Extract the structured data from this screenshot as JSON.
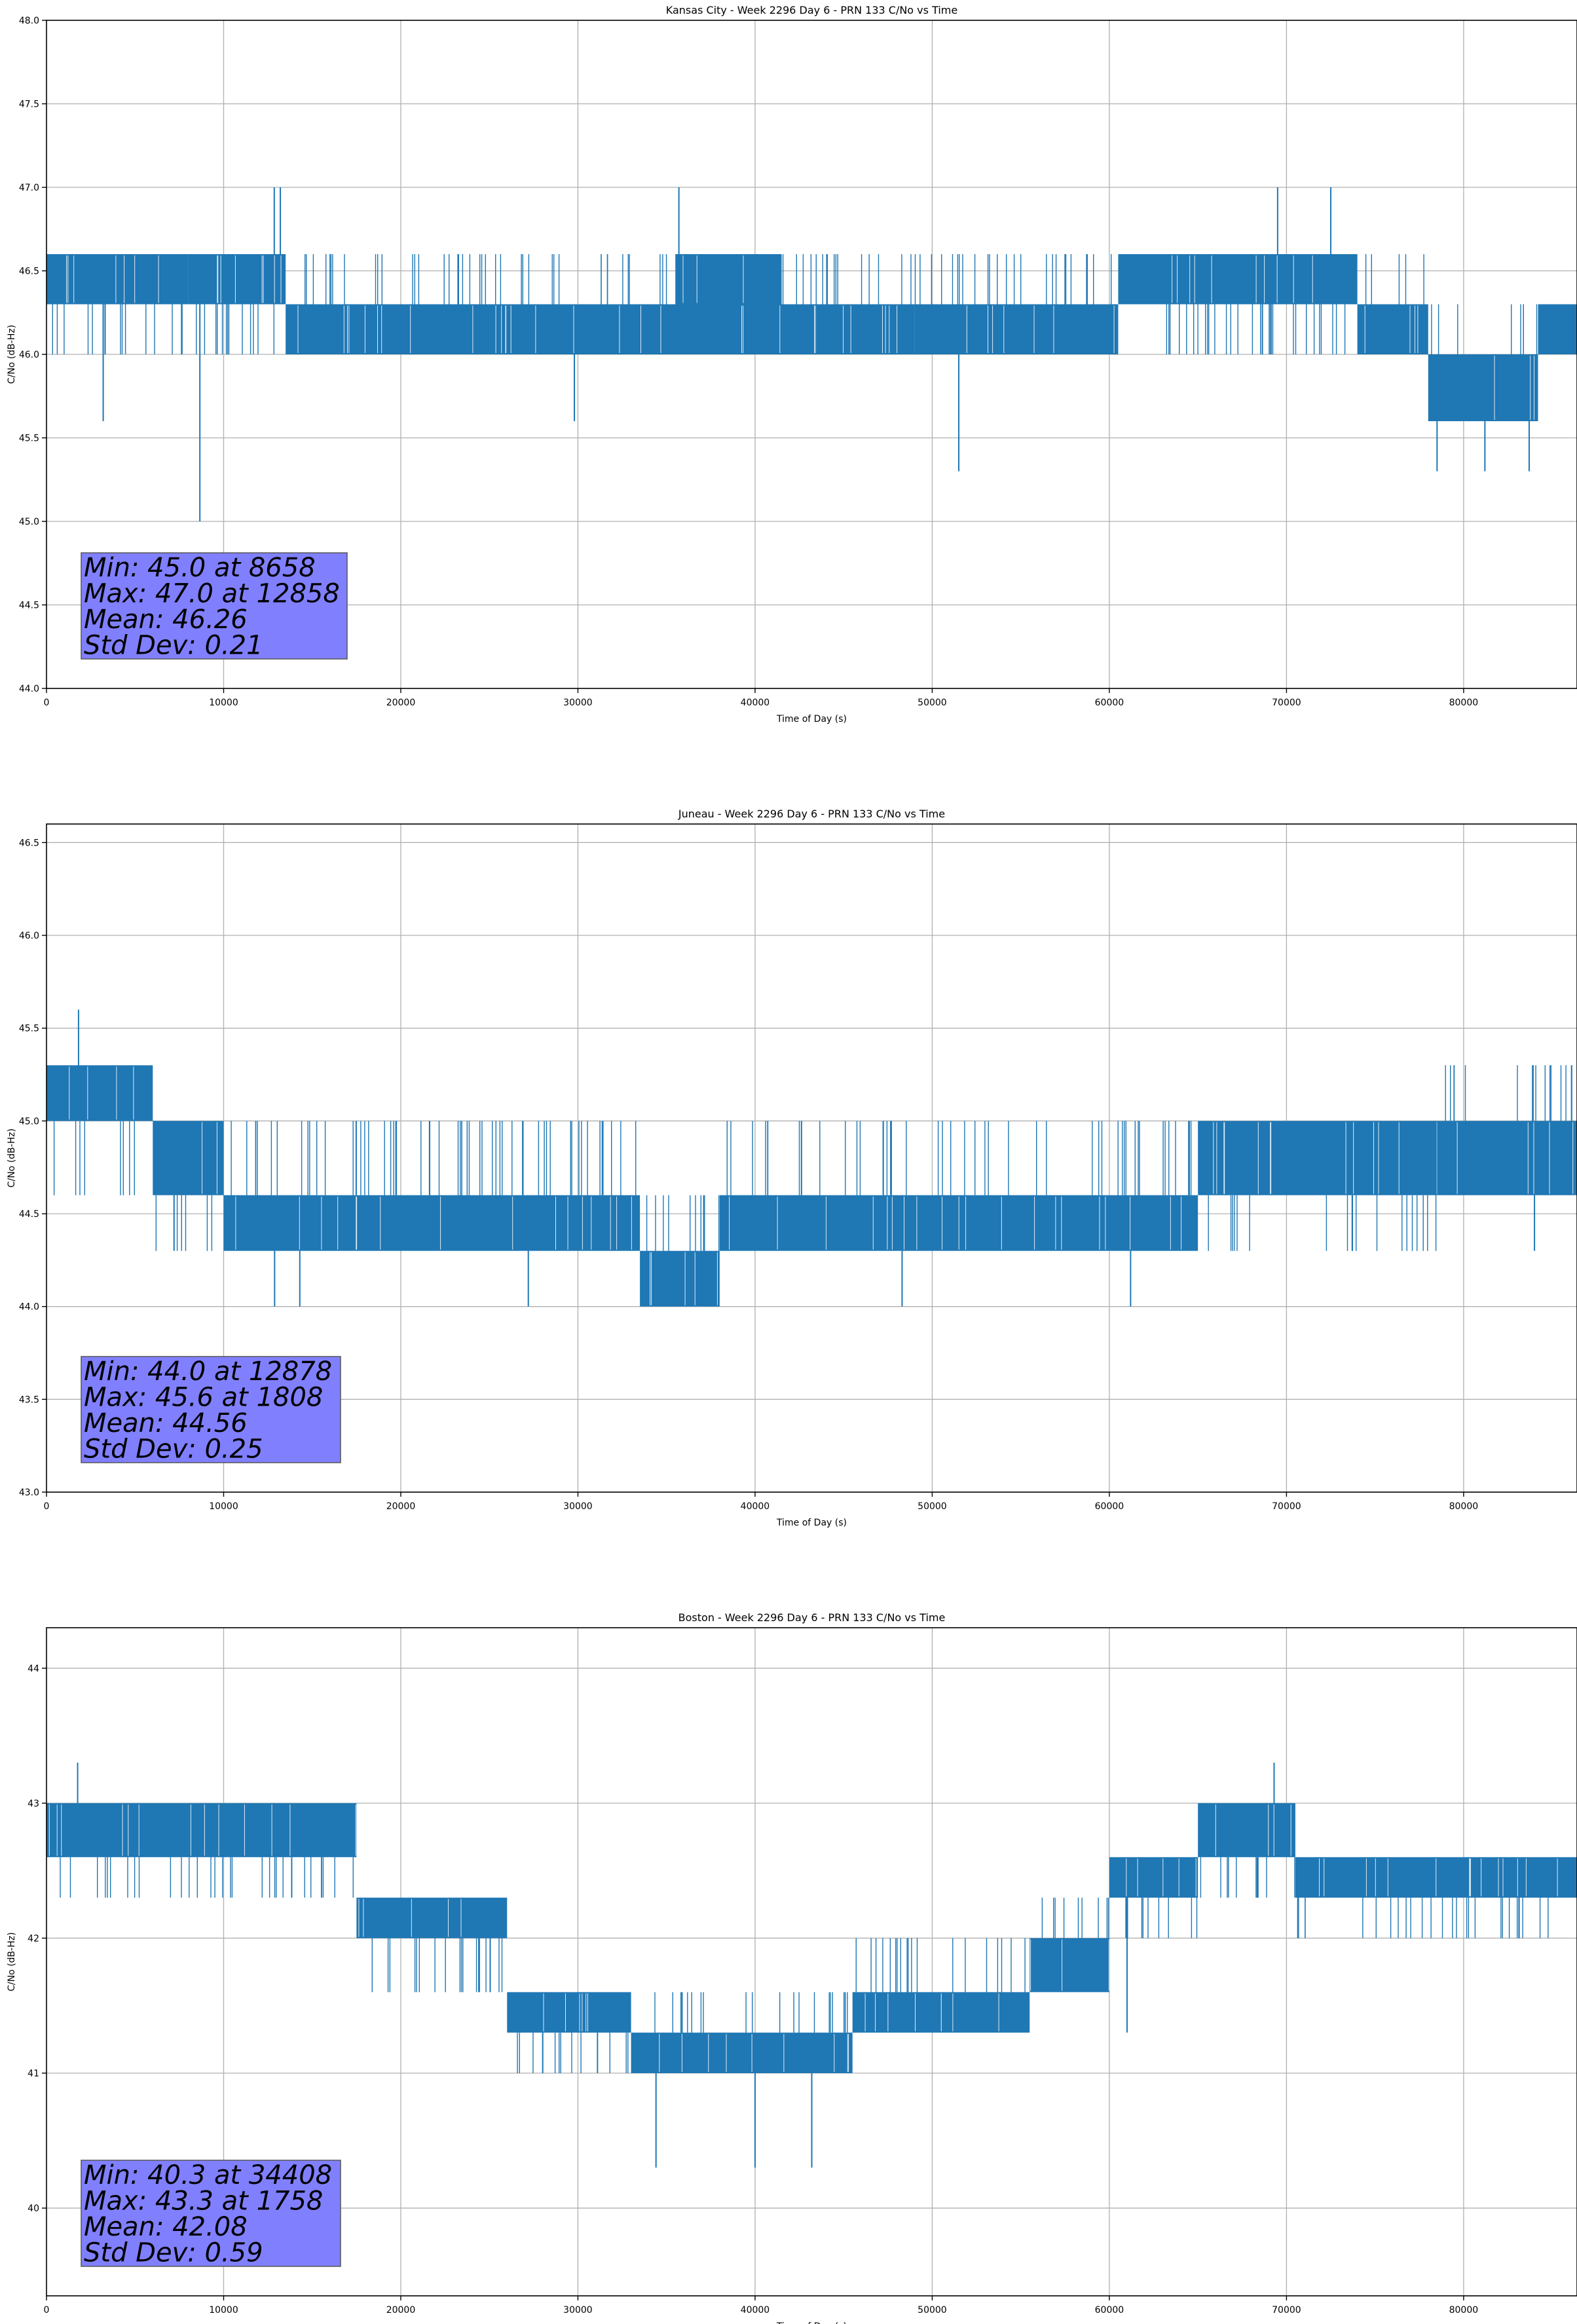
{
  "colors": {
    "line": "#1f77b4",
    "grid": "#b0b0b0",
    "stats_box_fill": "#8080ff",
    "stats_box_edge": "#555555",
    "text": "#000000"
  },
  "chart_data": [
    {
      "type": "line",
      "title": "Kansas City - Week 2296 Day 6 - PRN 133 C/No vs Time",
      "xlabel": "Time of Day (s)",
      "ylabel": "C/No (dB-Hz)",
      "xlim": [
        0,
        86400
      ],
      "ylim": [
        44.0,
        48.0
      ],
      "x_ticks": [
        0,
        10000,
        20000,
        30000,
        40000,
        50000,
        60000,
        70000,
        80000
      ],
      "x_tick_labels": [
        "0",
        "10000",
        "20000",
        "30000",
        "40000",
        "50000",
        "60000",
        "70000",
        "80000"
      ],
      "y_ticks": [
        44.0,
        44.5,
        45.0,
        45.5,
        46.0,
        46.5,
        47.0,
        47.5,
        48.0
      ],
      "y_tick_labels": [
        "44.0",
        "44.5",
        "45.0",
        "45.5",
        "46.0",
        "46.5",
        "47.0",
        "47.5",
        "48.0"
      ],
      "grid": true,
      "quantization_step": 0.3,
      "band_segments": [
        {
          "x": [
            0,
            8000
          ],
          "levels": [
            46.3,
            46.6
          ],
          "sparse_low": 46.0
        },
        {
          "x": [
            8000,
            13500
          ],
          "levels": [
            46.3,
            46.6
          ],
          "sparse_low": 46.0
        },
        {
          "x": [
            13500,
            30000
          ],
          "levels": [
            46.0,
            46.3
          ],
          "sparse_high": 46.6
        },
        {
          "x": [
            30000,
            49000
          ],
          "levels": [
            46.0,
            46.3
          ],
          "sparse_high": 46.6
        },
        {
          "x": [
            35500,
            41500
          ],
          "levels": [
            46.3,
            46.6
          ],
          "sparse_low": 46.0
        },
        {
          "x": [
            49000,
            60500
          ],
          "levels": [
            46.0,
            46.3
          ],
          "sparse_high": 46.6
        },
        {
          "x": [
            60500,
            74000
          ],
          "levels": [
            46.3,
            46.6
          ],
          "sparse_low": 46.0
        },
        {
          "x": [
            74000,
            78000
          ],
          "levels": [
            46.0,
            46.3
          ],
          "sparse_high": 46.6
        },
        {
          "x": [
            78000,
            84200
          ],
          "levels": [
            45.6,
            46.0
          ],
          "sparse_high": 46.3
        },
        {
          "x": [
            84200,
            86400
          ],
          "levels": [
            46.0,
            46.3
          ],
          "sparse_high": 46.3
        }
      ],
      "spikes": [
        {
          "x": 3200,
          "y": 45.6
        },
        {
          "x": 8658,
          "y": 45.0
        },
        {
          "x": 12858,
          "y": 47.0
        },
        {
          "x": 13200,
          "y": 47.0
        },
        {
          "x": 29800,
          "y": 45.6
        },
        {
          "x": 35700,
          "y": 47.0
        },
        {
          "x": 51500,
          "y": 45.3
        },
        {
          "x": 69500,
          "y": 47.0
        },
        {
          "x": 72500,
          "y": 47.0
        },
        {
          "x": 78500,
          "y": 45.3
        },
        {
          "x": 81200,
          "y": 45.3
        },
        {
          "x": 83700,
          "y": 45.3
        }
      ],
      "stats": {
        "min": "Min: 45.0 at 8658",
        "max": "Max: 47.0 at 12858",
        "mean": "Mean: 46.26",
        "std": "Std Dev: 0.21"
      }
    },
    {
      "type": "line",
      "title": "Juneau - Week 2296 Day 6 - PRN 133 C/No vs Time",
      "xlabel": "Time of Day (s)",
      "ylabel": "C/No (dB-Hz)",
      "xlim": [
        0,
        86400
      ],
      "ylim": [
        43.0,
        46.6
      ],
      "x_ticks": [
        0,
        10000,
        20000,
        30000,
        40000,
        50000,
        60000,
        70000,
        80000
      ],
      "x_tick_labels": [
        "0",
        "10000",
        "20000",
        "30000",
        "40000",
        "50000",
        "60000",
        "70000",
        "80000"
      ],
      "y_ticks": [
        43.0,
        43.5,
        44.0,
        44.5,
        45.0,
        45.5,
        46.0,
        46.5
      ],
      "y_tick_labels": [
        "43.0",
        "43.5",
        "44.0",
        "44.5",
        "45.0",
        "45.5",
        "46.0",
        "46.5"
      ],
      "grid": true,
      "quantization_step": 0.3,
      "band_segments": [
        {
          "x": [
            0,
            6000
          ],
          "levels": [
            45.0,
            45.3
          ],
          "sparse_low": 44.6
        },
        {
          "x": [
            6000,
            10000
          ],
          "levels": [
            44.6,
            45.0
          ],
          "sparse_low": 44.3
        },
        {
          "x": [
            10000,
            33500
          ],
          "levels": [
            44.3,
            44.6
          ],
          "sparse_high": 45.0
        },
        {
          "x": [
            33500,
            38000
          ],
          "levels": [
            44.0,
            44.3
          ],
          "sparse_high": 44.6
        },
        {
          "x": [
            38000,
            65000
          ],
          "levels": [
            44.3,
            44.6
          ],
          "sparse_high": 45.0
        },
        {
          "x": [
            65000,
            78500
          ],
          "levels": [
            44.6,
            45.0
          ],
          "sparse_low": 44.3
        },
        {
          "x": [
            78500,
            86400
          ],
          "levels": [
            44.6,
            45.0
          ],
          "sparse_high": 45.3
        }
      ],
      "spikes": [
        {
          "x": 1808,
          "y": 45.6
        },
        {
          "x": 7200,
          "y": 44.3
        },
        {
          "x": 12878,
          "y": 44.0
        },
        {
          "x": 14300,
          "y": 44.0
        },
        {
          "x": 27200,
          "y": 44.0
        },
        {
          "x": 48300,
          "y": 44.0
        },
        {
          "x": 61200,
          "y": 44.0
        },
        {
          "x": 84000,
          "y": 44.3
        }
      ],
      "stats": {
        "min": "Min: 44.0 at 12878",
        "max": "Max: 45.6 at 1808",
        "mean": "Mean: 44.56",
        "std": "Std Dev: 0.25"
      }
    },
    {
      "type": "line",
      "title": "Boston - Week 2296 Day 6 - PRN 133 C/No vs Time",
      "xlabel": "Time of Day (s)",
      "ylabel": "C/No (dB-Hz)",
      "xlim": [
        0,
        86400
      ],
      "ylim": [
        39.35,
        44.3
      ],
      "x_ticks": [
        0,
        10000,
        20000,
        30000,
        40000,
        50000,
        60000,
        70000,
        80000
      ],
      "x_tick_labels": [
        "0",
        "10000",
        "20000",
        "30000",
        "40000",
        "50000",
        "60000",
        "70000",
        "80000"
      ],
      "y_ticks": [
        40,
        41,
        42,
        43,
        44
      ],
      "y_tick_labels": [
        "40",
        "41",
        "42",
        "43",
        "44"
      ],
      "grid": true,
      "quantization_step": 0.3,
      "band_segments": [
        {
          "x": [
            0,
            17500
          ],
          "levels": [
            42.6,
            43.0
          ],
          "sparse_low": 42.3
        },
        {
          "x": [
            17500,
            26000
          ],
          "levels": [
            42.0,
            42.3
          ],
          "sparse_low": 41.6
        },
        {
          "x": [
            26000,
            33000
          ],
          "levels": [
            41.3,
            41.6
          ],
          "sparse_low": 41.0
        },
        {
          "x": [
            33000,
            45500
          ],
          "levels": [
            41.0,
            41.3
          ],
          "sparse_high": 41.6
        },
        {
          "x": [
            45500,
            55500
          ],
          "levels": [
            41.3,
            41.6
          ],
          "sparse_high": 42.0
        },
        {
          "x": [
            55500,
            60000
          ],
          "levels": [
            41.6,
            42.0
          ],
          "sparse_high": 42.3
        },
        {
          "x": [
            60000,
            65000
          ],
          "levels": [
            42.3,
            42.6
          ],
          "sparse_low": 42.0
        },
        {
          "x": [
            65000,
            70500
          ],
          "levels": [
            42.6,
            43.0
          ],
          "sparse_low": 42.3
        },
        {
          "x": [
            70500,
            86400
          ],
          "levels": [
            42.3,
            42.6
          ],
          "sparse_low": 42.0
        }
      ],
      "spikes": [
        {
          "x": 1758,
          "y": 43.3
        },
        {
          "x": 34408,
          "y": 40.3
        },
        {
          "x": 40000,
          "y": 40.3
        },
        {
          "x": 43200,
          "y": 40.3
        },
        {
          "x": 61000,
          "y": 41.3
        },
        {
          "x": 69300,
          "y": 43.3
        }
      ],
      "stats": {
        "min": "Min: 40.3 at 34408",
        "max": "Max: 43.3 at 1758",
        "mean": "Mean: 42.08",
        "std": "Std Dev: 0.59"
      }
    }
  ]
}
